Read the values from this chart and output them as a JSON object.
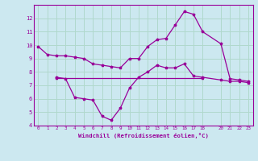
{
  "xlabel": "Windchill (Refroidissement éolien,°C)",
  "bg_color": "#cce8f0",
  "grid_color": "#b0d8cc",
  "line_color": "#990099",
  "line1_x": [
    0,
    1,
    2,
    3,
    4,
    5,
    6,
    7,
    8,
    9,
    10,
    11,
    12,
    13,
    14,
    15,
    16,
    17,
    18,
    20,
    21,
    22,
    23
  ],
  "line1_y": [
    9.9,
    9.3,
    9.2,
    9.2,
    9.1,
    9.0,
    8.6,
    8.5,
    8.4,
    8.3,
    9.0,
    9.0,
    9.9,
    10.4,
    10.5,
    11.5,
    12.5,
    12.3,
    11.0,
    10.1,
    7.5,
    7.4,
    7.3
  ],
  "line2_x": [
    2,
    3,
    4,
    5,
    6,
    7,
    8,
    9,
    10,
    11,
    12,
    13,
    14,
    15,
    16,
    17,
    18,
    20,
    21,
    22,
    23
  ],
  "line2_y": [
    7.6,
    7.5,
    6.1,
    6.0,
    5.9,
    4.7,
    4.4,
    5.3,
    6.8,
    7.6,
    8.0,
    8.5,
    8.3,
    8.3,
    8.6,
    7.7,
    7.6,
    7.4,
    7.3,
    7.3,
    7.2
  ],
  "hline_x_start": 2,
  "hline_x_end": 18,
  "hline_y": 7.55,
  "ylim": [
    4,
    13
  ],
  "xlim": [
    -0.5,
    23.5
  ],
  "yticks": [
    4,
    5,
    6,
    7,
    8,
    9,
    10,
    11,
    12
  ],
  "xtick_vals": [
    0,
    1,
    2,
    3,
    4,
    5,
    6,
    7,
    8,
    9,
    10,
    11,
    12,
    13,
    14,
    15,
    16,
    17,
    18,
    20,
    21,
    22,
    23
  ],
  "xtick_labels": [
    "0",
    "1",
    "2",
    "3",
    "4",
    "5",
    "6",
    "7",
    "8",
    "9",
    "10",
    "11",
    "12",
    "13",
    "14",
    "15",
    "16",
    "17",
    "18",
    "20",
    "21",
    "22",
    "23"
  ]
}
